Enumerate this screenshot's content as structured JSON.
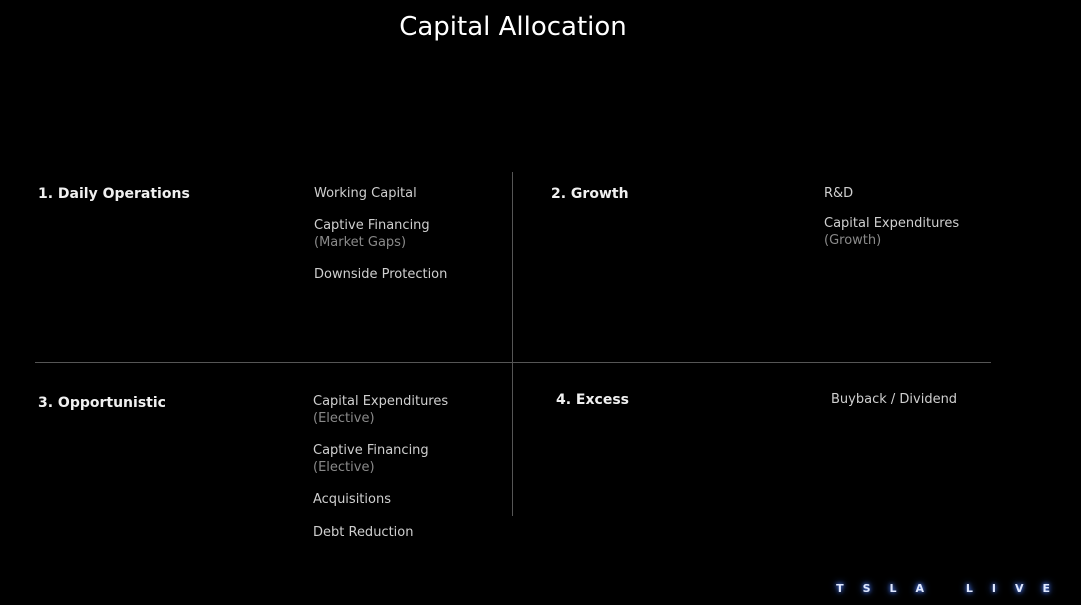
{
  "title": "Capital Allocation",
  "quadrants": [
    {
      "heading": "1. Daily Operations",
      "items": [
        {
          "label": "Working Capital"
        },
        {
          "label": "Captive Financing",
          "sub": "(Market Gaps)"
        },
        {
          "label": "Downside Protection"
        }
      ]
    },
    {
      "heading": "2. Growth",
      "items": [
        {
          "label": "R&D"
        },
        {
          "label": "Capital Expenditures",
          "sub": "(Growth)"
        }
      ]
    },
    {
      "heading": "3. Opportunistic",
      "items": [
        {
          "label": "Capital Expenditures",
          "sub": "(Elective)"
        },
        {
          "label": "Captive Financing",
          "sub": "(Elective)"
        },
        {
          "label": "Acquisitions"
        },
        {
          "label": "Debt Reduction"
        }
      ]
    },
    {
      "heading": "4. Excess",
      "items": [
        {
          "label": "Buyback / Dividend"
        }
      ]
    }
  ],
  "logo": "TSLA LIVE"
}
